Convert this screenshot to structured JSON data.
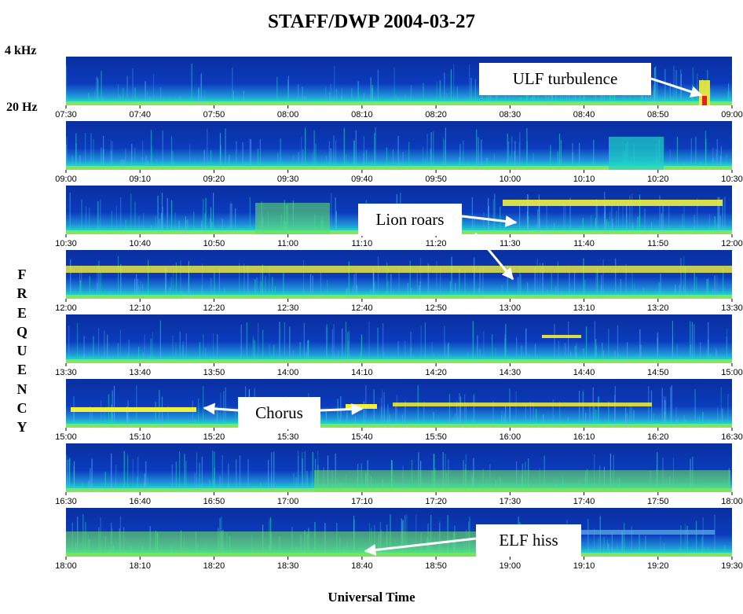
{
  "title": "STAFF/DWP 2004-03-27",
  "y_top_label": "4 kHz",
  "y_bottom_label": "20 Hz",
  "vertical_label": [
    "F",
    "R",
    "E",
    "Q",
    "U",
    "E",
    "N",
    "C",
    "Y"
  ],
  "x_axis_label": "Universal Time",
  "annotations": {
    "ulf": "ULF turbulence",
    "lion": "Lion roars",
    "chorus": "Chorus",
    "elf": "ELF hiss"
  },
  "colors": {
    "background_low": "#0a2fa0",
    "mid": "#1fd6c4",
    "high": "#f2f03a",
    "peak": "#e8201a"
  },
  "chart_data": {
    "type": "heatmap",
    "title": "STAFF/DWP 2004-03-27",
    "xlabel": "Universal Time",
    "ylabel": "FREQUENCY",
    "ylim": [
      "20 Hz",
      "4 kHz"
    ],
    "panels": [
      {
        "range": [
          "07:30",
          "09:00"
        ],
        "ticks": [
          "07:30",
          "07:40",
          "07:50",
          "08:00",
          "08:10",
          "08:20",
          "08:30",
          "08:40",
          "08:50",
          "09:00"
        ]
      },
      {
        "range": [
          "09:00",
          "10:30"
        ],
        "ticks": [
          "09:00",
          "09:10",
          "09:20",
          "09:30",
          "09:40",
          "09:50",
          "10:00",
          "10:10",
          "10:20",
          "10:30"
        ]
      },
      {
        "range": [
          "10:30",
          "12:00"
        ],
        "ticks": [
          "10:30",
          "10:40",
          "10:50",
          "11:00",
          "11:10",
          "11:20",
          "11:30",
          "11:40",
          "11:50",
          "12:00"
        ]
      },
      {
        "range": [
          "12:00",
          "13:30"
        ],
        "ticks": [
          "12:00",
          "12:10",
          "12:20",
          "12:30",
          "12:40",
          "12:50",
          "13:00",
          "13:10",
          "13:20",
          "13:30"
        ]
      },
      {
        "range": [
          "13:30",
          "15:00"
        ],
        "ticks": [
          "13:30",
          "13:40",
          "13:50",
          "14:00",
          "14:10",
          "14:20",
          "14:30",
          "14:40",
          "14:50",
          "15:00"
        ]
      },
      {
        "range": [
          "15:00",
          "16:30"
        ],
        "ticks": [
          "15:00",
          "15:10",
          "15:20",
          "15:30",
          "15:40",
          "15:50",
          "16:00",
          "16:10",
          "16:20",
          "16:30"
        ]
      },
      {
        "range": [
          "16:30",
          "18:00"
        ],
        "ticks": [
          "16:30",
          "16:40",
          "16:50",
          "17:00",
          "17:10",
          "17:20",
          "17:30",
          "17:40",
          "17:50",
          "18:00"
        ]
      },
      {
        "range": [
          "18:00",
          "19:30"
        ],
        "ticks": [
          "18:00",
          "18:10",
          "18:20",
          "18:30",
          "18:40",
          "18:50",
          "19:00",
          "19:10",
          "19:20",
          "19:30"
        ]
      }
    ]
  }
}
